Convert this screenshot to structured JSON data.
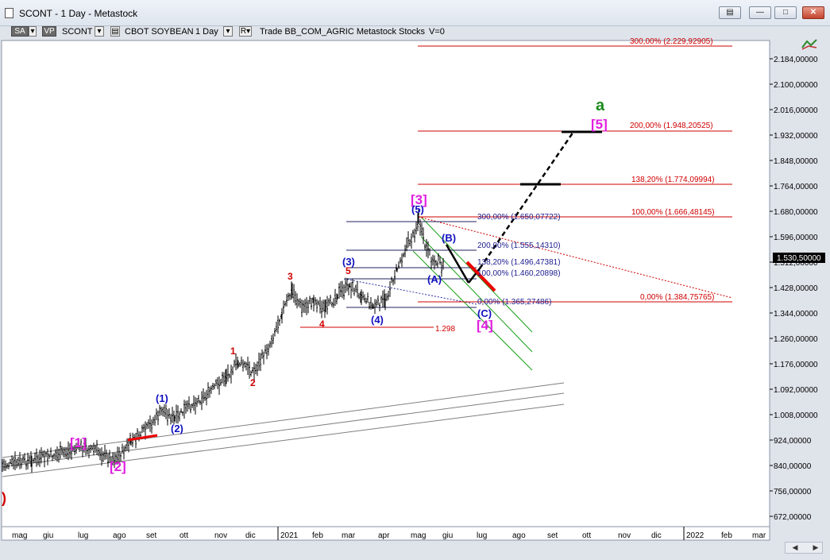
{
  "window": {
    "title": "SCONT - 1 Day - Metastock"
  },
  "toolbar": {
    "sa": "SA",
    "vp": "VP",
    "symbol": "SCONT",
    "name": "CBOT SOYBEAN",
    "period": "1 Day",
    "r": "R",
    "rest": "Trade  BB_COM_AGRIC  Metastock  Stocks",
    "v": "V=0"
  },
  "price_axis": {
    "labels": [
      "2.184,00000",
      "2.100,00000",
      "2.016,00000",
      "1.932,00000",
      "1.848,00000",
      "1.764,00000",
      "1.680,00000",
      "1.596,00000",
      "1.512,00000",
      "1.428,00000",
      "1.344,00000",
      "1.260,00000",
      "1.176,00000",
      "1.092,00000",
      "1.008,00000",
      "924,00000",
      "840,00000",
      "756,00000",
      "672,00000"
    ],
    "last_price": "1.530,50000"
  },
  "date_axis": {
    "labels": [
      "mag",
      "giu",
      "lug",
      "ago",
      "set",
      "ott",
      "nov",
      "dic",
      "2021",
      "feb",
      "mar",
      "apr",
      "mag",
      "giu",
      "lug",
      "ago",
      "set",
      "ott",
      "nov",
      "dic",
      "2022",
      "feb",
      "mar"
    ]
  },
  "fib_levels": {
    "ext300": "300,00% (2.229,92905)",
    "ext200": "200,00% (1.948,20525)",
    "ext138": "138,20% (1.774,09994)",
    "ext100": "100,00% (1.666,48145)",
    "ext0": "0,00% (1.384,75765)",
    "b300": "300,00% (1.650,07722)",
    "b200": "200,00% (1.555,14310)",
    "b138": "138,20% (1.496,47381)",
    "b100": "100,00% (1.460,20898)",
    "b0": "0,00% (1.365,27486)",
    "level_1298": "1.298"
  },
  "wave_labels": {
    "a": "a",
    "w5_pink": "[5]",
    "w3_pink": "[3]",
    "w4_pink": "[4]",
    "w1_pink": "[1]",
    "w2_pink": "[2]",
    "w5_blue": "(5)",
    "wB_blue": "(B)",
    "w3_blue": "(3)",
    "wA_blue": "(A)",
    "w4_blue": "(4)",
    "wC_blue": "(C)",
    "w1_blue": "(1)",
    "w2_blue": "(2)",
    "r1": "1",
    "r2": "2",
    "r3": "3",
    "r4": "4",
    "r5": "5",
    "edge": ")"
  },
  "colors": {
    "fib_ext": "#d00000",
    "fib_blue": "#202080",
    "pink": "#e020e0",
    "blue_label": "#1010c0",
    "red_label": "#d00000",
    "green": "#1a8a1a",
    "channel": "#808080",
    "dash": "#000000"
  }
}
